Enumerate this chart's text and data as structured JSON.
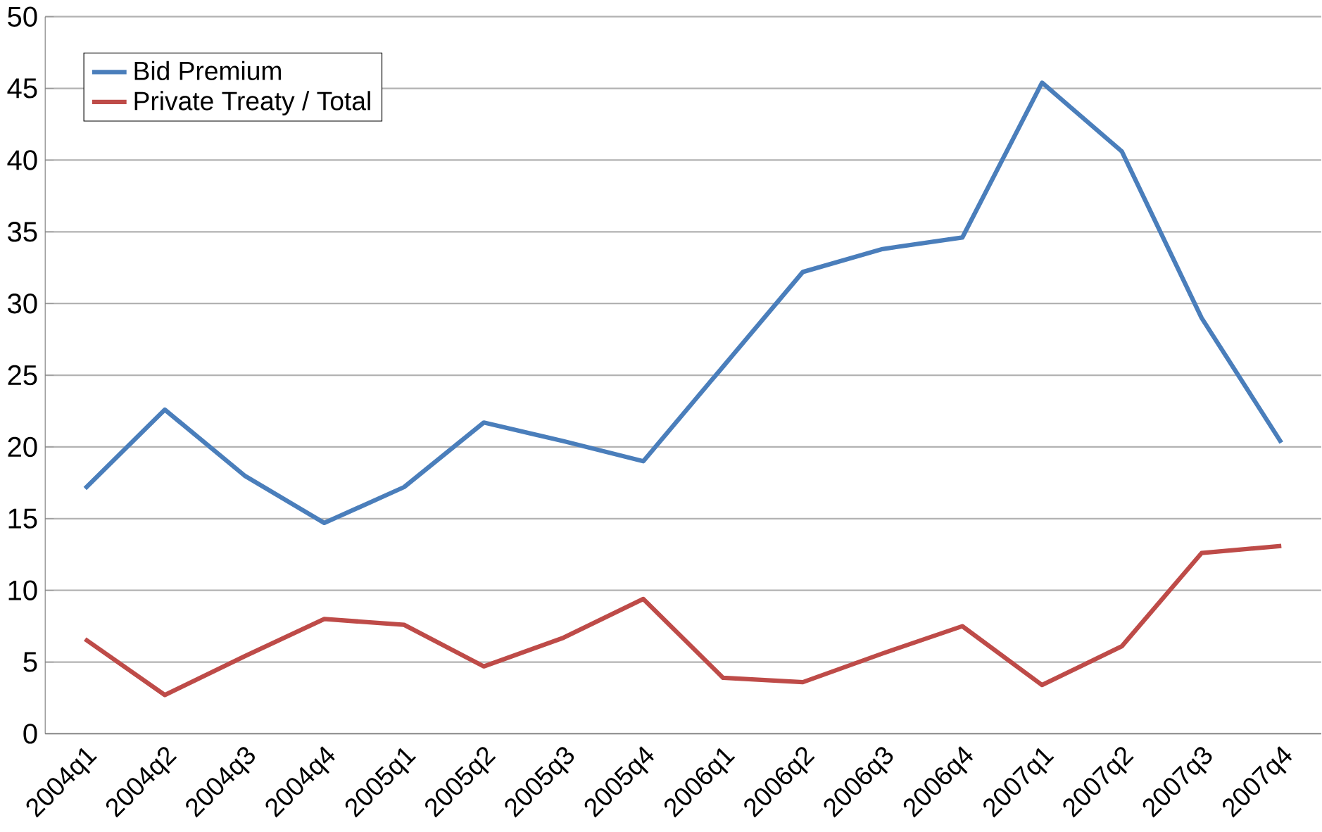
{
  "chart_data": {
    "type": "line",
    "categories": [
      "2004q1",
      "2004q2",
      "2004q3",
      "2004q4",
      "2005q1",
      "2005q2",
      "2005q3",
      "2005q4",
      "2006q1",
      "2006q2",
      "2006q3",
      "2006q4",
      "2007q1",
      "2007q2",
      "2007q3",
      "2007q4"
    ],
    "series": [
      {
        "name": "Bid Premium",
        "color": "#4a7ebb",
        "values": [
          17.1,
          22.6,
          18.0,
          14.7,
          17.2,
          21.7,
          20.4,
          19.0,
          25.6,
          32.2,
          33.8,
          34.6,
          45.4,
          40.6,
          29.0,
          20.3
        ]
      },
      {
        "name": "Private Treaty / Total",
        "color": "#be4b48",
        "values": [
          6.6,
          2.7,
          5.4,
          8.0,
          7.6,
          4.7,
          6.7,
          9.4,
          3.9,
          3.6,
          5.6,
          7.5,
          3.4,
          6.1,
          12.6,
          13.1
        ]
      }
    ],
    "ylim": [
      0,
      50
    ],
    "yticks": [
      0,
      5,
      10,
      15,
      20,
      25,
      30,
      35,
      40,
      45,
      50
    ],
    "grid": "y",
    "legend": "top left",
    "marker": "none",
    "line_style": "solid"
  }
}
